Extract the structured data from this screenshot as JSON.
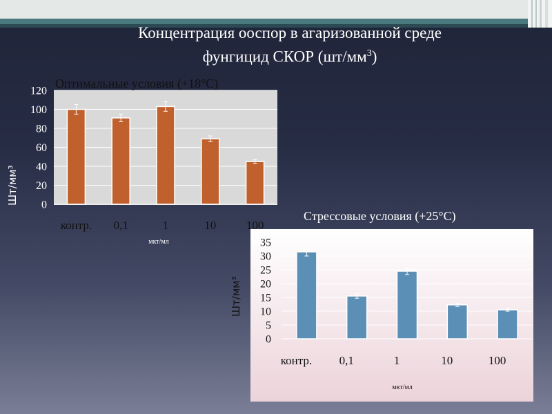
{
  "page": {
    "title_line1": "Концентрация ооспор в агаризованной среде",
    "title_line2": "фунгицид СКОР (шт/мм",
    "title_sup": "3",
    "title_tail": ")"
  },
  "chart_data": [
    {
      "type": "bar",
      "title": "Оптимальные условия (+18°С)",
      "categories": [
        "контр.",
        "0,1",
        "1",
        "10",
        "100"
      ],
      "values": [
        100,
        91,
        103,
        69,
        45
      ],
      "errors": [
        5,
        4,
        5,
        3,
        2
      ],
      "ylabel": "Шт/мм³",
      "xlabel": "мкт/мл",
      "ylim": [
        0,
        120
      ],
      "yticks": [
        0,
        20,
        40,
        60,
        80,
        100,
        120
      ],
      "bar_color": "#c0602c",
      "plot_bg": "#d9d9d9",
      "grid": true
    },
    {
      "type": "bar",
      "title": "Стрессовые условия (+25°С)",
      "categories": [
        "контр.",
        "0,1",
        "1",
        "10",
        "100"
      ],
      "values": [
        31.5,
        15.5,
        24.5,
        12.3,
        10.5
      ],
      "errors": [
        1.5,
        0.8,
        1.2,
        0.6,
        0.5
      ],
      "ylabel": "Шт/мм³",
      "xlabel": "мкт/мл",
      "ylim": [
        0,
        35
      ],
      "yticks": [
        0,
        5,
        10,
        15,
        20,
        25,
        30,
        35
      ],
      "bar_color": "#5b8fb5",
      "grid": true
    }
  ]
}
